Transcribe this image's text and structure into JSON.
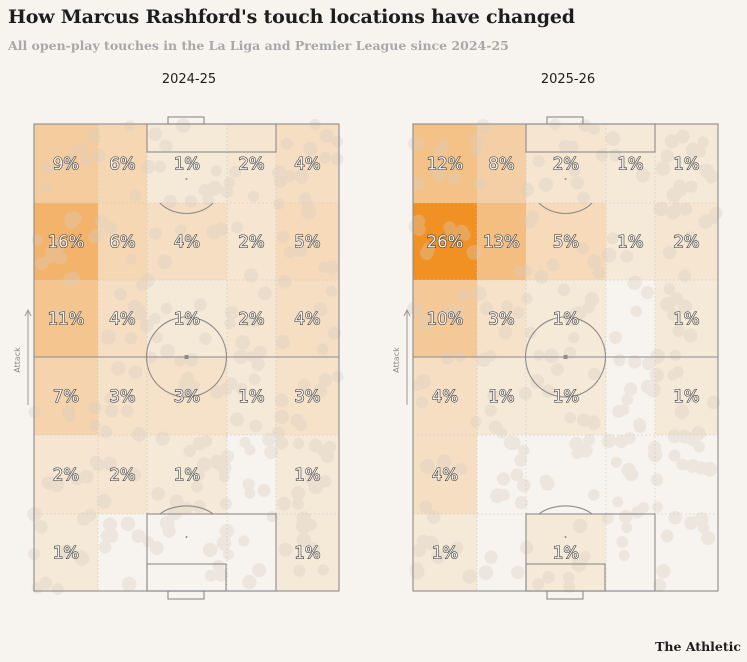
{
  "header": {
    "title": "How Marcus Rashford's touch locations have changed",
    "subtitle": "All open-play touches in the La Liga and Premier League since 2024-25"
  },
  "brand": "The Athletic",
  "colors": {
    "background": "#f7f4ef",
    "heat_max": "#f0850c",
    "pitch_line": "#8c8c8c"
  },
  "chart_data": [
    {
      "type": "heatmap",
      "title": "2024-25",
      "direction_label": "Attack",
      "rows_from_top": [
        [
          "9%",
          "6%",
          "1%",
          "2%",
          "4%"
        ],
        [
          "16%",
          "6%",
          "4%",
          "2%",
          "5%"
        ],
        [
          "11%",
          "4%",
          "1%",
          "2%",
          "4%"
        ],
        [
          "7%",
          "3%",
          "3%",
          "1%",
          "3%"
        ],
        [
          "2%",
          "2%",
          "1%",
          "",
          "1%"
        ],
        [
          "1%",
          "",
          "",
          "",
          "1%"
        ]
      ]
    },
    {
      "type": "heatmap",
      "title": "2025-26",
      "direction_label": "Attack",
      "rows_from_top": [
        [
          "12%",
          "8%",
          "2%",
          "1%",
          "1%"
        ],
        [
          "26%",
          "13%",
          "5%",
          "1%",
          "2%"
        ],
        [
          "10%",
          "3%",
          "1%",
          "",
          "1%"
        ],
        [
          "4%",
          "1%",
          "1%",
          "",
          "1%"
        ],
        [
          "4%",
          "",
          "",
          "",
          ""
        ],
        [
          "1%",
          "",
          "1%",
          "",
          ""
        ]
      ]
    }
  ]
}
